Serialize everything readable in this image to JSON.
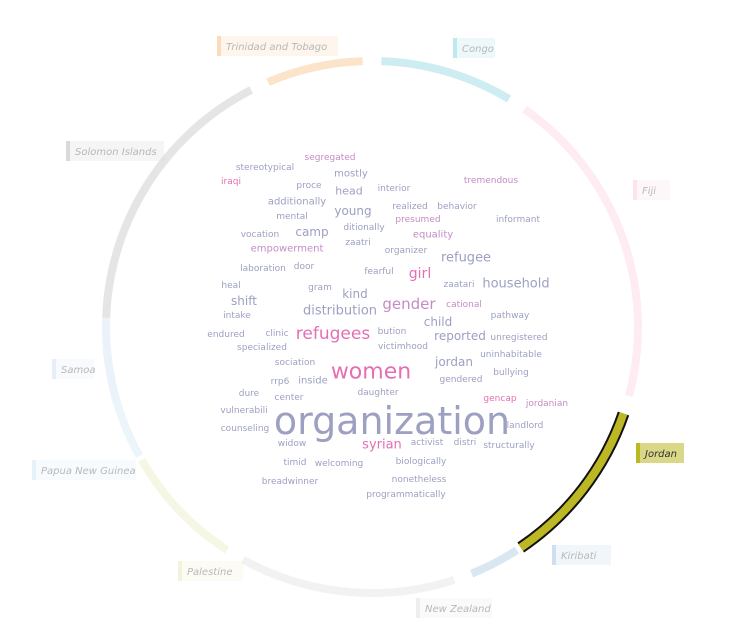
{
  "chart_data": {
    "type": "word-cloud-with-radial-segments",
    "selected_country": "Jordan",
    "segments": [
      {
        "name": "Trinidad and Tobago",
        "color": "#fbd8b4",
        "opacity": 0.7,
        "start_deg": -23,
        "end_deg": -2
      },
      {
        "name": "Congo",
        "color": "#b9e5ee",
        "opacity": 0.7,
        "start_deg": 2,
        "end_deg": 31
      },
      {
        "name": "Fiji",
        "color": "#fde0ea",
        "opacity": 0.6,
        "start_deg": 35,
        "end_deg": 105
      },
      {
        "name": "Jordan",
        "color": "#bcb824",
        "opacity": 1.0,
        "start_deg": 109,
        "end_deg": 146,
        "selected": true
      },
      {
        "name": "Kiribati",
        "color": "#c9ddee",
        "opacity": 0.7,
        "start_deg": 147,
        "end_deg": 158
      },
      {
        "name": "New Zealand",
        "color": "#ececec",
        "opacity": 0.7,
        "start_deg": 162,
        "end_deg": 209
      },
      {
        "name": "Palestine",
        "color": "#f2f2d8",
        "opacity": 0.7,
        "start_deg": 213,
        "end_deg": 240
      },
      {
        "name": "Papua New Guinea",
        "color": "#e3f1f8",
        "opacity": 0.7,
        "start_deg": 241,
        "end_deg": 254
      },
      {
        "name": "Samoa",
        "color": "#e4ecf8",
        "opacity": 0.7,
        "start_deg": 254,
        "end_deg": 272
      },
      {
        "name": "Solomon Islands",
        "color": "#d7d7d7",
        "opacity": 0.65,
        "start_deg": 272,
        "end_deg": 333
      }
    ],
    "words": [
      {
        "text": "organization",
        "size": 38,
        "color": "#9da0c1"
      },
      {
        "text": "women",
        "size": 22,
        "color": "#e46fb3"
      },
      {
        "text": "refugees",
        "size": 17,
        "color": "#e46fb3"
      },
      {
        "text": "gender",
        "size": 15,
        "color": "#c58cc3"
      },
      {
        "text": "refugee",
        "size": 13,
        "color": "#9da0c1"
      },
      {
        "text": "girl",
        "size": 14,
        "color": "#e46fb3"
      },
      {
        "text": "household",
        "size": 13,
        "color": "#9da0c1"
      },
      {
        "text": "distribution",
        "size": 13,
        "color": "#9da0c1"
      },
      {
        "text": "syrian",
        "size": 13,
        "color": "#e46fb3"
      },
      {
        "text": "kind",
        "size": 12,
        "color": "#9da0c1"
      },
      {
        "text": "child",
        "size": 12,
        "color": "#9da0c1"
      },
      {
        "text": "shift",
        "size": 12,
        "color": "#9da0c1"
      },
      {
        "text": "camp",
        "size": 12,
        "color": "#9da0c1"
      },
      {
        "text": "young",
        "size": 12,
        "color": "#9da0c1"
      },
      {
        "text": "reported",
        "size": 12,
        "color": "#9da0c1"
      },
      {
        "text": "jordan",
        "size": 12,
        "color": "#9da0c1"
      },
      {
        "text": "head",
        "size": 11,
        "color": "#9da0c1"
      },
      {
        "text": "mostly",
        "size": 10,
        "color": "#9da0c1"
      },
      {
        "text": "inside",
        "size": 10,
        "color": "#9da0c1"
      },
      {
        "text": "empowerment",
        "size": 10,
        "color": "#c58cc3"
      },
      {
        "text": "additionally",
        "size": 10,
        "color": "#9da0c1"
      },
      {
        "text": "equality",
        "size": 10,
        "color": "#c58cc3"
      },
      {
        "text": "presumed",
        "size": 9,
        "color": "#c58cc3"
      },
      {
        "text": "stereotypical",
        "size": 9,
        "color": "#9da0c1"
      },
      {
        "text": "segregated",
        "size": 9,
        "color": "#c58cc3"
      },
      {
        "text": "iraqi",
        "size": 9,
        "color": "#e46fb3"
      },
      {
        "text": "proce",
        "size": 9,
        "color": "#9da0c1"
      },
      {
        "text": "interior",
        "size": 9,
        "color": "#9da0c1"
      },
      {
        "text": "tremendous",
        "size": 9,
        "color": "#c58cc3"
      },
      {
        "text": "realized",
        "size": 9,
        "color": "#9da0c1"
      },
      {
        "text": "behavior",
        "size": 9,
        "color": "#9da0c1"
      },
      {
        "text": "mental",
        "size": 9,
        "color": "#9da0c1"
      },
      {
        "text": "informant",
        "size": 9,
        "color": "#9da0c1"
      },
      {
        "text": "vocation",
        "size": 9,
        "color": "#9da0c1"
      },
      {
        "text": "ditionally",
        "size": 9,
        "color": "#9da0c1"
      },
      {
        "text": "zaatri",
        "size": 9,
        "color": "#9da0c1"
      },
      {
        "text": "organizer",
        "size": 9,
        "color": "#9da0c1"
      },
      {
        "text": "laboration",
        "size": 9,
        "color": "#9da0c1"
      },
      {
        "text": "door",
        "size": 9,
        "color": "#9da0c1"
      },
      {
        "text": "fearful",
        "size": 9,
        "color": "#9da0c1"
      },
      {
        "text": "heal",
        "size": 9,
        "color": "#9da0c1"
      },
      {
        "text": "gram",
        "size": 9,
        "color": "#9da0c1"
      },
      {
        "text": "zaatari",
        "size": 9,
        "color": "#9da0c1"
      },
      {
        "text": "intake",
        "size": 9,
        "color": "#9da0c1"
      },
      {
        "text": "cational",
        "size": 9,
        "color": "#c58cc3"
      },
      {
        "text": "pathway",
        "size": 9,
        "color": "#9da0c1"
      },
      {
        "text": "endured",
        "size": 9,
        "color": "#9da0c1"
      },
      {
        "text": "clinic",
        "size": 9,
        "color": "#9da0c1"
      },
      {
        "text": "bution",
        "size": 9,
        "color": "#9da0c1"
      },
      {
        "text": "unregistered",
        "size": 9,
        "color": "#9da0c1"
      },
      {
        "text": "specialized",
        "size": 9,
        "color": "#9da0c1"
      },
      {
        "text": "victimhood",
        "size": 9,
        "color": "#9da0c1"
      },
      {
        "text": "uninhabitable",
        "size": 9,
        "color": "#9da0c1"
      },
      {
        "text": "sociation",
        "size": 9,
        "color": "#9da0c1"
      },
      {
        "text": "bullying",
        "size": 9,
        "color": "#9da0c1"
      },
      {
        "text": "rrp6",
        "size": 9,
        "color": "#9da0c1"
      },
      {
        "text": "gendered",
        "size": 9,
        "color": "#9da0c1"
      },
      {
        "text": "dure",
        "size": 9,
        "color": "#9da0c1"
      },
      {
        "text": "daughter",
        "size": 9,
        "color": "#9da0c1"
      },
      {
        "text": "center",
        "size": 9,
        "color": "#9da0c1"
      },
      {
        "text": "gencap",
        "size": 9,
        "color": "#e46fb3"
      },
      {
        "text": "jordanian",
        "size": 9,
        "color": "#c58cc3"
      },
      {
        "text": "vulnerabili",
        "size": 9,
        "color": "#9da0c1"
      },
      {
        "text": "counseling",
        "size": 9,
        "color": "#9da0c1"
      },
      {
        "text": "landlord",
        "size": 9,
        "color": "#9da0c1"
      },
      {
        "text": "widow",
        "size": 9,
        "color": "#9da0c1"
      },
      {
        "text": "activist",
        "size": 9,
        "color": "#9da0c1"
      },
      {
        "text": "distri",
        "size": 9,
        "color": "#9da0c1"
      },
      {
        "text": "structurally",
        "size": 9,
        "color": "#9da0c1"
      },
      {
        "text": "timid",
        "size": 9,
        "color": "#9da0c1"
      },
      {
        "text": "welcoming",
        "size": 9,
        "color": "#9da0c1"
      },
      {
        "text": "biologically",
        "size": 9,
        "color": "#9da0c1"
      },
      {
        "text": "breadwinner",
        "size": 9,
        "color": "#9da0c1"
      },
      {
        "text": "nonetheless",
        "size": 9,
        "color": "#9da0c1"
      },
      {
        "text": "programmatically",
        "size": 9,
        "color": "#9da0c1"
      }
    ]
  }
}
